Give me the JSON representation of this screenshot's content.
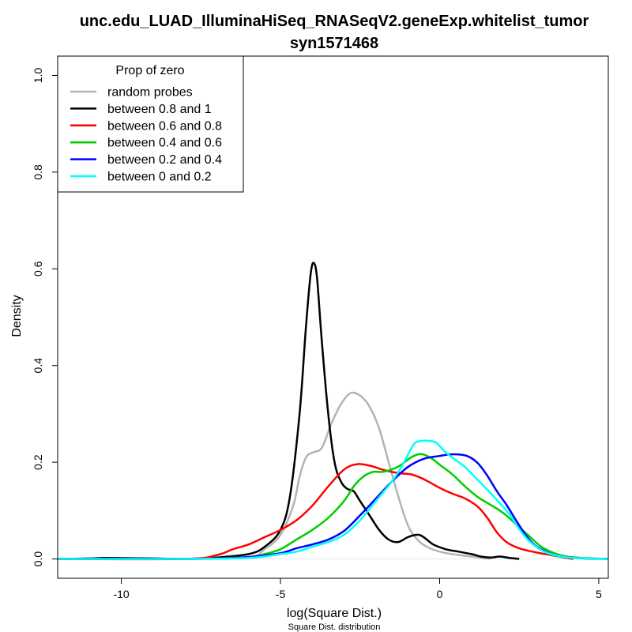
{
  "chart_data": {
    "type": "line",
    "title": "unc.edu_LUAD_IlluminaHiSeq_RNASeqV2.geneExp.whitelist_tumor",
    "subtitle": "syn1571468",
    "xlabel": "log(Square Dist.)",
    "ylabel": "Density",
    "sub_caption": "Square Dist. distribution",
    "xlim": [
      -12,
      5.3
    ],
    "ylim": [
      -0.04,
      1.04
    ],
    "x_ticks": [
      -10,
      -5,
      0,
      5
    ],
    "y_ticks": [
      0.0,
      0.2,
      0.4,
      0.6,
      0.8,
      1.0
    ],
    "grid": false,
    "legend": {
      "title": "Prop of zero",
      "placement": "top-left",
      "entries": [
        "random probes",
        "between 0.8 and 1",
        "between 0.6 and 0.8",
        "between 0.4 and 0.6",
        "between 0.2 and 0.4",
        "between 0 and 0.2"
      ]
    },
    "series": [
      {
        "name": "random probes",
        "color": "#b3b3b3",
        "points": [
          [
            -12,
            0
          ],
          [
            -8,
            0
          ],
          [
            -6,
            0.004
          ],
          [
            -5.5,
            0.02
          ],
          [
            -5,
            0.05
          ],
          [
            -4.6,
            0.11
          ],
          [
            -4.4,
            0.17
          ],
          [
            -4.2,
            0.21
          ],
          [
            -4,
            0.22
          ],
          [
            -3.7,
            0.23
          ],
          [
            -3.4,
            0.28
          ],
          [
            -3.1,
            0.32
          ],
          [
            -2.8,
            0.343
          ],
          [
            -2.5,
            0.338
          ],
          [
            -2.2,
            0.315
          ],
          [
            -1.9,
            0.27
          ],
          [
            -1.6,
            0.2
          ],
          [
            -1.3,
            0.13
          ],
          [
            -1,
            0.07
          ],
          [
            -0.7,
            0.04
          ],
          [
            -0.4,
            0.025
          ],
          [
            0,
            0.015
          ],
          [
            0.5,
            0.009
          ],
          [
            1,
            0.005
          ],
          [
            1.6,
            0
          ]
        ]
      },
      {
        "name": "between 0.8 and 1",
        "color": "#000000",
        "points": [
          [
            -12,
            0
          ],
          [
            -11,
            0.001
          ],
          [
            -10.5,
            0.002
          ],
          [
            -9,
            0.001
          ],
          [
            -8,
            0
          ],
          [
            -7,
            0.003
          ],
          [
            -6,
            0.01
          ],
          [
            -5.5,
            0.025
          ],
          [
            -5,
            0.06
          ],
          [
            -4.7,
            0.13
          ],
          [
            -4.4,
            0.3
          ],
          [
            -4.2,
            0.48
          ],
          [
            -4.05,
            0.59
          ],
          [
            -3.95,
            0.612
          ],
          [
            -3.85,
            0.58
          ],
          [
            -3.7,
            0.45
          ],
          [
            -3.5,
            0.3
          ],
          [
            -3.3,
            0.2
          ],
          [
            -3.1,
            0.16
          ],
          [
            -2.9,
            0.145
          ],
          [
            -2.7,
            0.14
          ],
          [
            -2.5,
            0.12
          ],
          [
            -2.2,
            0.09
          ],
          [
            -1.9,
            0.06
          ],
          [
            -1.6,
            0.04
          ],
          [
            -1.3,
            0.035
          ],
          [
            -1,
            0.045
          ],
          [
            -0.7,
            0.05
          ],
          [
            -0.5,
            0.045
          ],
          [
            -0.2,
            0.03
          ],
          [
            0.2,
            0.02
          ],
          [
            0.6,
            0.015
          ],
          [
            1,
            0.01
          ],
          [
            1.3,
            0.005
          ],
          [
            1.6,
            0.003
          ],
          [
            1.9,
            0.005
          ],
          [
            2.2,
            0.002
          ],
          [
            2.5,
            0
          ]
        ]
      },
      {
        "name": "between 0.6 and 0.8",
        "color": "#ff0000",
        "points": [
          [
            -12,
            0
          ],
          [
            -8,
            0
          ],
          [
            -7,
            0.008
          ],
          [
            -6.5,
            0.02
          ],
          [
            -6,
            0.03
          ],
          [
            -5.5,
            0.045
          ],
          [
            -5,
            0.06
          ],
          [
            -4.5,
            0.08
          ],
          [
            -4,
            0.11
          ],
          [
            -3.5,
            0.15
          ],
          [
            -3,
            0.185
          ],
          [
            -2.6,
            0.196
          ],
          [
            -2.2,
            0.193
          ],
          [
            -1.8,
            0.185
          ],
          [
            -1.5,
            0.18
          ],
          [
            -1.2,
            0.177
          ],
          [
            -0.9,
            0.175
          ],
          [
            -0.6,
            0.168
          ],
          [
            -0.3,
            0.158
          ],
          [
            0,
            0.147
          ],
          [
            0.4,
            0.135
          ],
          [
            0.8,
            0.125
          ],
          [
            1.2,
            0.108
          ],
          [
            1.5,
            0.085
          ],
          [
            1.8,
            0.055
          ],
          [
            2.1,
            0.035
          ],
          [
            2.5,
            0.022
          ],
          [
            3,
            0.014
          ],
          [
            3.5,
            0.008
          ],
          [
            4,
            0.002
          ],
          [
            4.2,
            0
          ]
        ]
      },
      {
        "name": "between 0.4 and 0.6",
        "color": "#00cd00",
        "points": [
          [
            -12,
            0
          ],
          [
            -8,
            0
          ],
          [
            -6,
            0.004
          ],
          [
            -5.5,
            0.01
          ],
          [
            -5,
            0.02
          ],
          [
            -4.5,
            0.04
          ],
          [
            -4,
            0.06
          ],
          [
            -3.5,
            0.085
          ],
          [
            -3,
            0.12
          ],
          [
            -2.7,
            0.15
          ],
          [
            -2.4,
            0.17
          ],
          [
            -2.1,
            0.18
          ],
          [
            -1.8,
            0.18
          ],
          [
            -1.5,
            0.185
          ],
          [
            -1.2,
            0.195
          ],
          [
            -0.9,
            0.21
          ],
          [
            -0.6,
            0.217
          ],
          [
            -0.3,
            0.21
          ],
          [
            0,
            0.195
          ],
          [
            0.4,
            0.175
          ],
          [
            0.8,
            0.15
          ],
          [
            1.2,
            0.128
          ],
          [
            1.6,
            0.112
          ],
          [
            2,
            0.095
          ],
          [
            2.4,
            0.072
          ],
          [
            2.8,
            0.048
          ],
          [
            3.2,
            0.025
          ],
          [
            3.6,
            0.012
          ],
          [
            4,
            0.005
          ],
          [
            4.5,
            0.002
          ],
          [
            5.3,
            0
          ]
        ]
      },
      {
        "name": "between 0.2 and 0.4",
        "color": "#0000ff",
        "points": [
          [
            -12,
            0
          ],
          [
            -8,
            0
          ],
          [
            -7,
            0.001
          ],
          [
            -6,
            0.004
          ],
          [
            -5,
            0.012
          ],
          [
            -4.5,
            0.022
          ],
          [
            -4,
            0.03
          ],
          [
            -3.5,
            0.04
          ],
          [
            -3,
            0.058
          ],
          [
            -2.5,
            0.09
          ],
          [
            -2,
            0.125
          ],
          [
            -1.5,
            0.16
          ],
          [
            -1,
            0.19
          ],
          [
            -0.5,
            0.207
          ],
          [
            0,
            0.213
          ],
          [
            0.3,
            0.216
          ],
          [
            0.6,
            0.216
          ],
          [
            0.9,
            0.212
          ],
          [
            1.2,
            0.198
          ],
          [
            1.5,
            0.172
          ],
          [
            1.8,
            0.14
          ],
          [
            2.1,
            0.112
          ],
          [
            2.4,
            0.08
          ],
          [
            2.7,
            0.05
          ],
          [
            3,
            0.028
          ],
          [
            3.4,
            0.013
          ],
          [
            3.8,
            0.005
          ],
          [
            4.5,
            0.001
          ],
          [
            5.3,
            0
          ]
        ]
      },
      {
        "name": "between 0 and 0.2",
        "color": "#00ffff",
        "points": [
          [
            -12,
            0
          ],
          [
            -8,
            0
          ],
          [
            -6,
            0.002
          ],
          [
            -5,
            0.01
          ],
          [
            -4.5,
            0.015
          ],
          [
            -4,
            0.025
          ],
          [
            -3.5,
            0.035
          ],
          [
            -3,
            0.05
          ],
          [
            -2.5,
            0.08
          ],
          [
            -2,
            0.12
          ],
          [
            -1.5,
            0.16
          ],
          [
            -1.2,
            0.19
          ],
          [
            -1,
            0.215
          ],
          [
            -0.8,
            0.238
          ],
          [
            -0.6,
            0.244
          ],
          [
            -0.3,
            0.244
          ],
          [
            -0.1,
            0.24
          ],
          [
            0.2,
            0.22
          ],
          [
            0.5,
            0.205
          ],
          [
            0.8,
            0.19
          ],
          [
            1.1,
            0.17
          ],
          [
            1.4,
            0.15
          ],
          [
            1.8,
            0.122
          ],
          [
            2.2,
            0.092
          ],
          [
            2.5,
            0.062
          ],
          [
            2.8,
            0.038
          ],
          [
            3.2,
            0.018
          ],
          [
            3.6,
            0.008
          ],
          [
            4.2,
            0.002
          ],
          [
            5.3,
            0
          ]
        ]
      }
    ]
  }
}
